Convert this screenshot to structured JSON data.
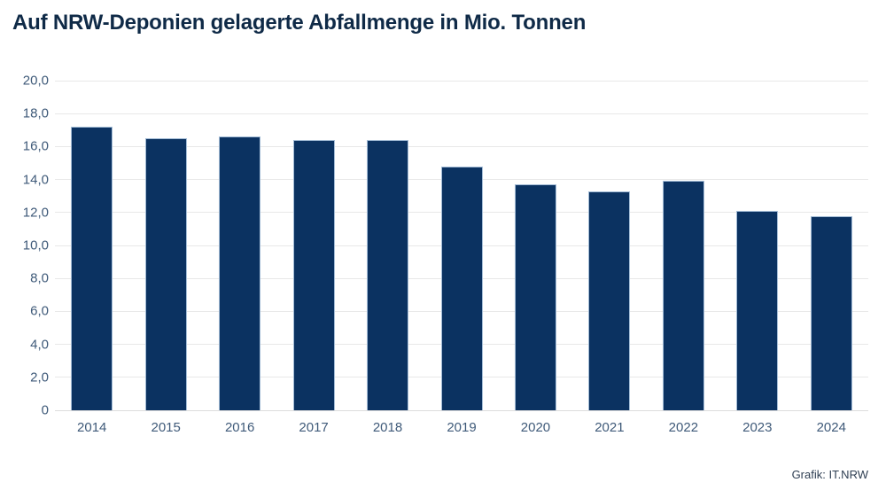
{
  "title": "Auf NRW-Deponien gelagerte Abfallmenge in Mio. Tonnen",
  "credit": "Grafik: IT.NRW",
  "colors": {
    "background": "#ffffff",
    "title": "#0f2a47",
    "axis_label": "#3f5a79",
    "gridline": "#e8e8e8",
    "bar_fill": "#0b3261",
    "bar_border": "#a3bcd6",
    "credit_text": "#2e3e52"
  },
  "chart_data": {
    "type": "bar",
    "title": "Auf NRW-Deponien gelagerte Abfallmenge in Mio. Tonnen",
    "categories": [
      "2014",
      "2015",
      "2016",
      "2017",
      "2018",
      "2019",
      "2020",
      "2021",
      "2022",
      "2023",
      "2024"
    ],
    "values": [
      17.2,
      16.5,
      16.6,
      16.4,
      16.4,
      14.8,
      13.7,
      13.3,
      13.9,
      12.1,
      11.8
    ],
    "xlabel": "",
    "ylabel": "",
    "ylim": [
      0,
      20
    ],
    "ytick_step": 2,
    "ytick_labels": [
      "20,0",
      "18,0",
      "16,0",
      "14,0",
      "12,0",
      "10,0",
      "8,0",
      "6,0",
      "4,0",
      "2,0",
      "0"
    ],
    "grid": true,
    "legend": false,
    "unit": "Mio. Tonnen"
  }
}
